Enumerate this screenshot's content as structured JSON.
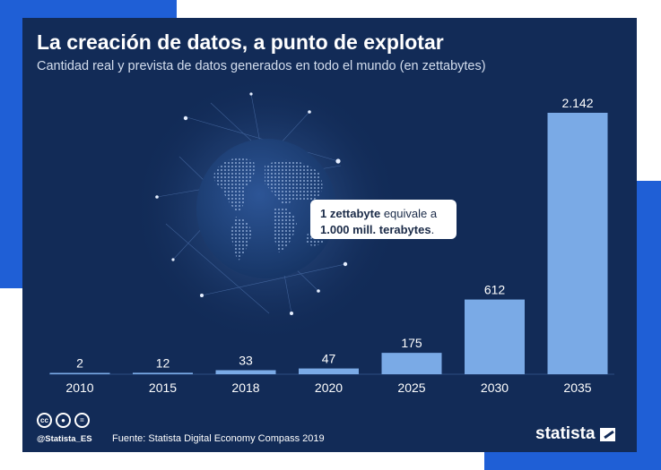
{
  "header": {
    "title": "La creación de datos, a punto de explotar",
    "subtitle": "Cantidad real y prevista de datos generados en todo el mundo (en zettabytes)"
  },
  "callout": {
    "strong_1": "1 zettabyte",
    "text_1": " equivale a",
    "strong_2": "1.000 mill. terabytes",
    "text_2": "."
  },
  "chart_data": {
    "type": "bar",
    "title": "La creación de datos, a punto de explotar",
    "subtitle": "Cantidad real y prevista de datos generados en todo el mundo (en zettabytes)",
    "xlabel": "",
    "ylabel": "",
    "categories": [
      "2010",
      "2015",
      "2018",
      "2020",
      "2025",
      "2030",
      "2035"
    ],
    "values": [
      2,
      12,
      33,
      47,
      175,
      612,
      2142
    ],
    "value_labels": [
      "2",
      "12",
      "33",
      "47",
      "175",
      "612",
      "2.142"
    ],
    "ylim": [
      0,
      2142
    ],
    "grid": false,
    "legend": "none",
    "bar_color": "#7aaae6"
  },
  "footer": {
    "license_icons": [
      "cc-icon",
      "by-icon",
      "nd-icon"
    ],
    "handle": "@Statista_ES",
    "source": "Fuente: Statista Digital Economy Compass 2019",
    "brand": "statista"
  },
  "colors": {
    "card_background": "#122b57",
    "accent_blue": "#1f5fd6",
    "bar": "#7aaae6"
  }
}
